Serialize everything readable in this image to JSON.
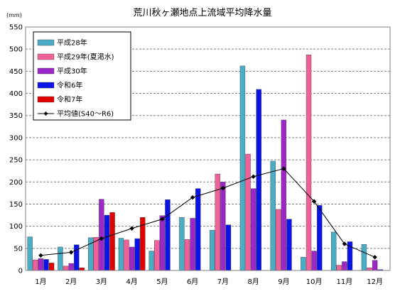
{
  "chart_data": {
    "type": "bar",
    "title": "荒川秋ヶ瀬地点上流域平均降水量",
    "unit_label": "(mm)",
    "ylim": [
      0,
      550
    ],
    "y_ticks": [
      0,
      50,
      100,
      150,
      200,
      250,
      300,
      350,
      400,
      450,
      500,
      550
    ],
    "grid": true,
    "legend_position": "top-left",
    "categories": [
      "1月",
      "2月",
      "3月",
      "4月",
      "5月",
      "6月",
      "7月",
      "8月",
      "9月",
      "10月",
      "11月",
      "12月"
    ],
    "series": [
      {
        "name": "平成28年",
        "type": "bar",
        "color": "#4bacc6",
        "values": [
          76,
          53,
          74,
          73,
          44,
          120,
          91,
          462,
          247,
          30,
          87,
          59
        ]
      },
      {
        "name": "平成29年(夏渇水)",
        "type": "bar",
        "color": "#f0609a",
        "values": [
          24,
          10,
          75,
          69,
          68,
          70,
          218,
          263,
          138,
          487,
          12,
          6
        ]
      },
      {
        "name": "平成30年",
        "type": "bar",
        "color": "#9c27c6",
        "values": [
          27,
          16,
          161,
          53,
          124,
          118,
          200,
          185,
          340,
          44,
          20,
          23
        ]
      },
      {
        "name": "令和6年",
        "type": "bar",
        "color": "#0a14e6",
        "values": [
          25,
          58,
          125,
          72,
          160,
          185,
          103,
          409,
          116,
          147,
          65,
          2
        ]
      },
      {
        "name": "令和7年",
        "type": "bar",
        "color": "#e00000",
        "values": [
          17,
          6,
          131,
          120,
          null,
          null,
          null,
          null,
          null,
          null,
          null,
          null
        ]
      },
      {
        "name": "平均値(S40～R6)",
        "type": "line",
        "color": "#000000",
        "values": [
          34,
          41,
          72,
          95,
          116,
          165,
          186,
          212,
          230,
          156,
          60,
          30
        ]
      }
    ]
  }
}
